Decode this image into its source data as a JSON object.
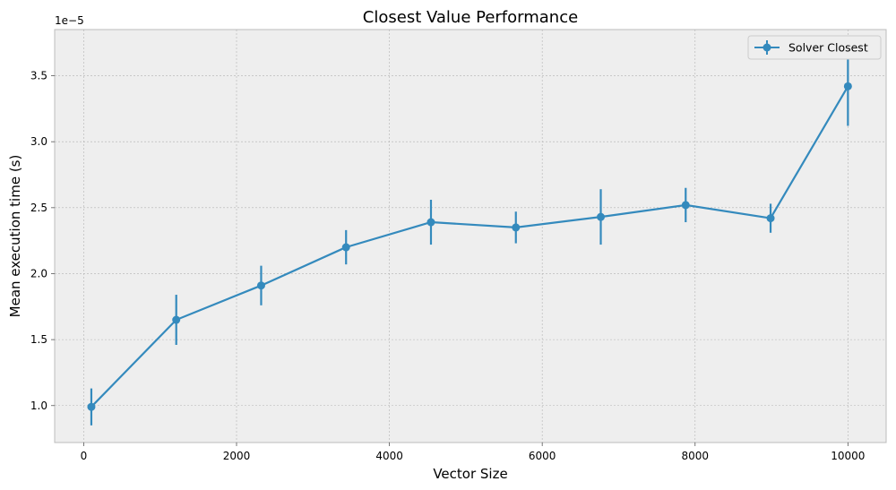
{
  "chart_data": {
    "type": "line",
    "title": "Closest Value Performance",
    "xlabel": "Vector Size",
    "ylabel": "Mean execution time (s)",
    "y_offset_label": "1e−5",
    "xlim": [
      -380,
      10500
    ],
    "ylim": [
      0.72,
      3.85
    ],
    "x_ticks": [
      0,
      2000,
      4000,
      6000,
      8000,
      10000
    ],
    "x_tick_labels": [
      "0",
      "2000",
      "4000",
      "6000",
      "8000",
      "10000"
    ],
    "y_ticks": [
      1.0,
      1.5,
      2.0,
      2.5,
      3.0,
      3.5
    ],
    "y_tick_labels": [
      "1.0",
      "1.5",
      "2.0",
      "2.5",
      "3.0",
      "3.5"
    ],
    "grid": true,
    "legend_position": "top-right",
    "series": [
      {
        "name": "Solver Closest",
        "color": "#348abd",
        "x": [
          100,
          1211,
          2322,
          3433,
          4544,
          5655,
          6766,
          7877,
          8988,
          10000
        ],
        "y": [
          0.99,
          1.65,
          1.91,
          2.2,
          2.39,
          2.35,
          2.43,
          2.52,
          2.42,
          3.42
        ],
        "err": [
          0.14,
          0.19,
          0.15,
          0.13,
          0.17,
          0.12,
          0.21,
          0.13,
          0.11,
          0.3
        ]
      }
    ]
  }
}
